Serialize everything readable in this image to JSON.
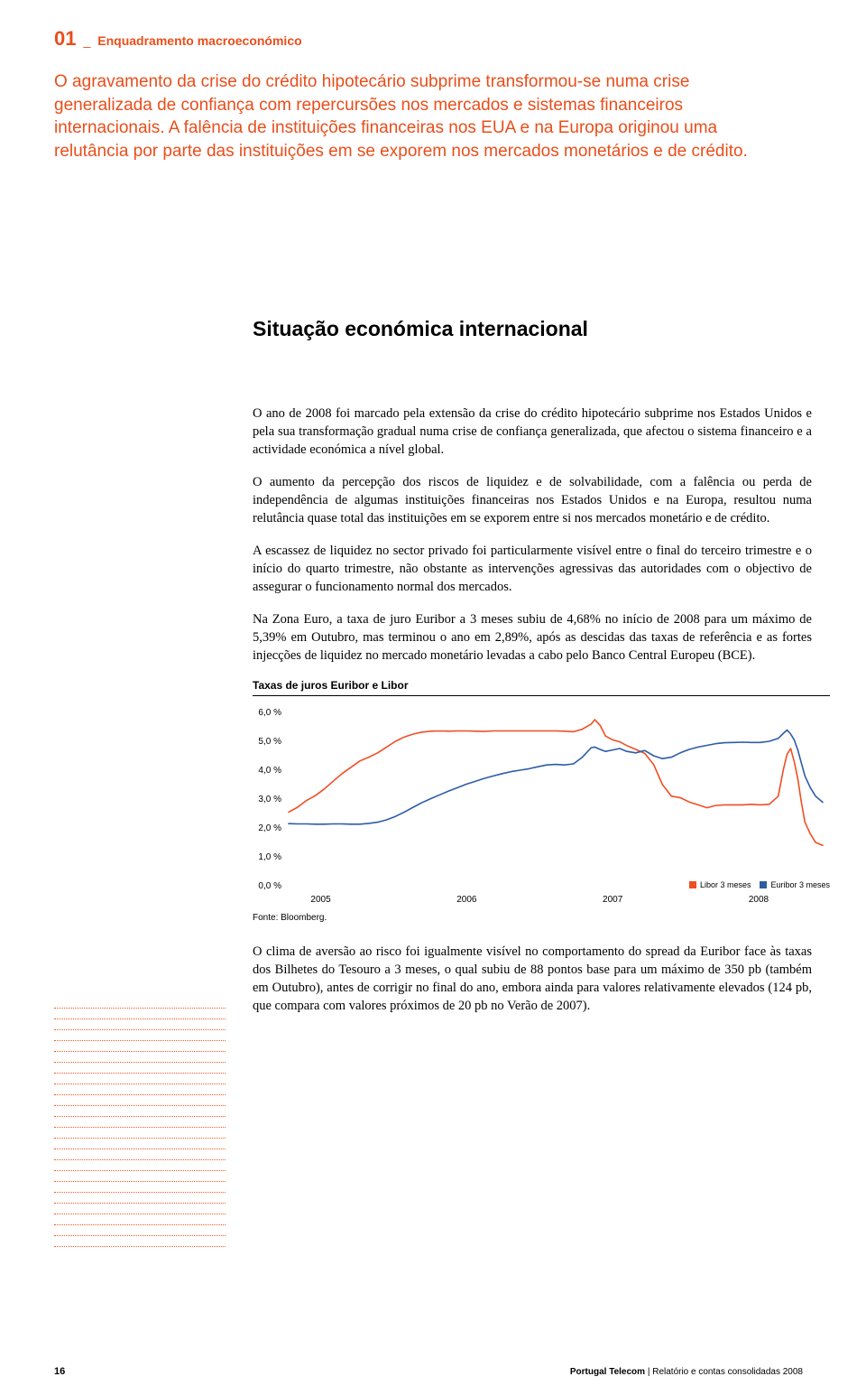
{
  "header": {
    "chapter_num": "01",
    "chapter_sep": "_",
    "chapter_title": "Enquadramento macroeconómico",
    "color": "#e94e1b"
  },
  "lead": {
    "text": "O agravamento da crise do crédito hipotecário subprime transformou-se numa crise generalizada de confiança com repercursões nos mercados e sistemas financeiros internacionais. A falência de instituições financeiras nos EUA e na Europa originou uma relutância por parte das instituições em se exporem nos mercados monetários e de crédito.",
    "color": "#e94e1b"
  },
  "section_title": "Situação económica internacional",
  "body": {
    "p1": "O ano de 2008 foi marcado pela extensão da crise do crédito hipotecário subprime nos Estados Unidos e pela sua transformação gradual numa crise de confiança generalizada, que afectou o sistema financeiro e a actividade económica a nível global.",
    "p2": "O aumento da percepção dos riscos de liquidez e de solvabilidade, com a falência ou perda de independência de algumas instituições financeiras nos Estados Unidos e na Europa, resultou numa relutância quase total das instituições em se exporem entre si nos mercados monetário e de crédito.",
    "p3": "A escassez de liquidez no sector privado foi particularmente visível entre o final do terceiro trimestre e o início do quarto trimestre, não obstante as intervenções agressivas das autoridades com o objectivo de assegurar o funcionamento normal dos mercados.",
    "p4": "Na Zona Euro, a taxa de juro Euribor a 3 meses subiu de 4,68% no início de 2008 para um máximo de 5,39% em Outubro, mas terminou o ano em 2,89%, após as descidas das taxas de referência e as fortes injecções de liquidez no mercado monetário levadas a cabo pelo Banco Central Europeu (BCE).",
    "p5": "O clima de aversão ao risco foi igualmente visível no comportamento do spread da Euribor face às taxas dos Bilhetes do Tesouro a 3 meses, o qual subiu de 88 pontos base para um máximo de 350 pb (também em Outubro), antes de corrigir no final do ano, embora ainda para valores relativamente elevados (124 pb, que compara com valores próximos de 20 pb no Verão de 2007)."
  },
  "chart": {
    "title": "Taxas de juros Euribor e Libor",
    "source": "Fonte: Bloomberg.",
    "type": "line",
    "ylim": [
      0,
      6
    ],
    "ytick_step": 1,
    "ylabel_suffix": " %",
    "yticks": [
      "0,0 %",
      "1,0 %",
      "2,0 %",
      "3,0 %",
      "4,0 %",
      "5,0 %",
      "6,0 %"
    ],
    "xticks": [
      "2005",
      "2006",
      "2007",
      "2008"
    ],
    "background_color": "#ffffff",
    "axis_color": "#555555",
    "line_width": 1.6,
    "label_fontsize": 10,
    "tick_fontsize": 10,
    "series": [
      {
        "name": "Libor 3 meses",
        "color": "#f04e23",
        "points": [
          [
            0.0,
            2.55
          ],
          [
            0.05,
            2.72
          ],
          [
            0.1,
            2.95
          ],
          [
            0.15,
            3.12
          ],
          [
            0.2,
            3.35
          ],
          [
            0.25,
            3.62
          ],
          [
            0.3,
            3.88
          ],
          [
            0.35,
            4.1
          ],
          [
            0.4,
            4.32
          ],
          [
            0.45,
            4.45
          ],
          [
            0.5,
            4.6
          ],
          [
            0.55,
            4.8
          ],
          [
            0.6,
            5.0
          ],
          [
            0.65,
            5.15
          ],
          [
            0.7,
            5.25
          ],
          [
            0.75,
            5.32
          ],
          [
            0.8,
            5.35
          ],
          [
            0.85,
            5.36
          ],
          [
            0.9,
            5.35
          ],
          [
            0.95,
            5.36
          ],
          [
            1.0,
            5.36
          ],
          [
            1.05,
            5.35
          ],
          [
            1.1,
            5.34
          ],
          [
            1.15,
            5.36
          ],
          [
            1.2,
            5.36
          ],
          [
            1.25,
            5.36
          ],
          [
            1.3,
            5.36
          ],
          [
            1.35,
            5.36
          ],
          [
            1.4,
            5.36
          ],
          [
            1.45,
            5.36
          ],
          [
            1.5,
            5.36
          ],
          [
            1.55,
            5.35
          ],
          [
            1.6,
            5.33
          ],
          [
            1.65,
            5.42
          ],
          [
            1.7,
            5.6
          ],
          [
            1.72,
            5.75
          ],
          [
            1.75,
            5.55
          ],
          [
            1.78,
            5.18
          ],
          [
            1.82,
            5.05
          ],
          [
            1.86,
            4.98
          ],
          [
            1.9,
            4.85
          ],
          [
            1.95,
            4.72
          ],
          [
            2.0,
            4.58
          ],
          [
            2.05,
            4.2
          ],
          [
            2.1,
            3.5
          ],
          [
            2.15,
            3.1
          ],
          [
            2.2,
            3.05
          ],
          [
            2.25,
            2.9
          ],
          [
            2.3,
            2.8
          ],
          [
            2.35,
            2.7
          ],
          [
            2.4,
            2.78
          ],
          [
            2.45,
            2.8
          ],
          [
            2.5,
            2.8
          ],
          [
            2.55,
            2.8
          ],
          [
            2.6,
            2.82
          ],
          [
            2.65,
            2.8
          ],
          [
            2.7,
            2.82
          ],
          [
            2.75,
            3.1
          ],
          [
            2.78,
            4.05
          ],
          [
            2.8,
            4.55
          ],
          [
            2.82,
            4.75
          ],
          [
            2.84,
            4.3
          ],
          [
            2.86,
            3.7
          ],
          [
            2.88,
            2.9
          ],
          [
            2.9,
            2.2
          ],
          [
            2.93,
            1.8
          ],
          [
            2.96,
            1.5
          ],
          [
            3.0,
            1.4
          ]
        ]
      },
      {
        "name": "Euribor 3 meses",
        "color": "#2d5ca6",
        "points": [
          [
            0.0,
            2.15
          ],
          [
            0.05,
            2.14
          ],
          [
            0.1,
            2.14
          ],
          [
            0.15,
            2.13
          ],
          [
            0.2,
            2.13
          ],
          [
            0.25,
            2.14
          ],
          [
            0.3,
            2.14
          ],
          [
            0.35,
            2.13
          ],
          [
            0.4,
            2.13
          ],
          [
            0.45,
            2.16
          ],
          [
            0.5,
            2.2
          ],
          [
            0.55,
            2.28
          ],
          [
            0.6,
            2.4
          ],
          [
            0.65,
            2.55
          ],
          [
            0.7,
            2.72
          ],
          [
            0.75,
            2.88
          ],
          [
            0.8,
            3.02
          ],
          [
            0.85,
            3.15
          ],
          [
            0.9,
            3.28
          ],
          [
            0.95,
            3.4
          ],
          [
            1.0,
            3.52
          ],
          [
            1.05,
            3.62
          ],
          [
            1.1,
            3.72
          ],
          [
            1.15,
            3.8
          ],
          [
            1.2,
            3.88
          ],
          [
            1.25,
            3.95
          ],
          [
            1.3,
            4.0
          ],
          [
            1.35,
            4.05
          ],
          [
            1.4,
            4.12
          ],
          [
            1.45,
            4.18
          ],
          [
            1.5,
            4.2
          ],
          [
            1.55,
            4.18
          ],
          [
            1.6,
            4.22
          ],
          [
            1.65,
            4.45
          ],
          [
            1.7,
            4.78
          ],
          [
            1.72,
            4.8
          ],
          [
            1.75,
            4.72
          ],
          [
            1.78,
            4.65
          ],
          [
            1.82,
            4.7
          ],
          [
            1.86,
            4.75
          ],
          [
            1.9,
            4.65
          ],
          [
            1.95,
            4.6
          ],
          [
            2.0,
            4.68
          ],
          [
            2.05,
            4.5
          ],
          [
            2.1,
            4.4
          ],
          [
            2.15,
            4.45
          ],
          [
            2.2,
            4.6
          ],
          [
            2.25,
            4.72
          ],
          [
            2.3,
            4.8
          ],
          [
            2.35,
            4.86
          ],
          [
            2.4,
            4.92
          ],
          [
            2.45,
            4.95
          ],
          [
            2.5,
            4.96
          ],
          [
            2.55,
            4.97
          ],
          [
            2.6,
            4.96
          ],
          [
            2.65,
            4.96
          ],
          [
            2.7,
            5.0
          ],
          [
            2.75,
            5.1
          ],
          [
            2.78,
            5.28
          ],
          [
            2.8,
            5.39
          ],
          [
            2.82,
            5.25
          ],
          [
            2.84,
            5.05
          ],
          [
            2.86,
            4.7
          ],
          [
            2.88,
            4.25
          ],
          [
            2.9,
            3.8
          ],
          [
            2.93,
            3.4
          ],
          [
            2.96,
            3.1
          ],
          [
            3.0,
            2.89
          ]
        ]
      }
    ],
    "legend_items": [
      {
        "label": "Libor 3 meses",
        "color": "#f04e23"
      },
      {
        "label": "Euribor 3 meses",
        "color": "#2d5ca6"
      }
    ]
  },
  "decor": {
    "dotted_color": "#f15a24",
    "dotted_count": 23
  },
  "footer": {
    "page_num": 16,
    "brand": "Portugal Telecom",
    "separator": " | ",
    "doc": "Relatório e contas consolidadas 2008"
  }
}
